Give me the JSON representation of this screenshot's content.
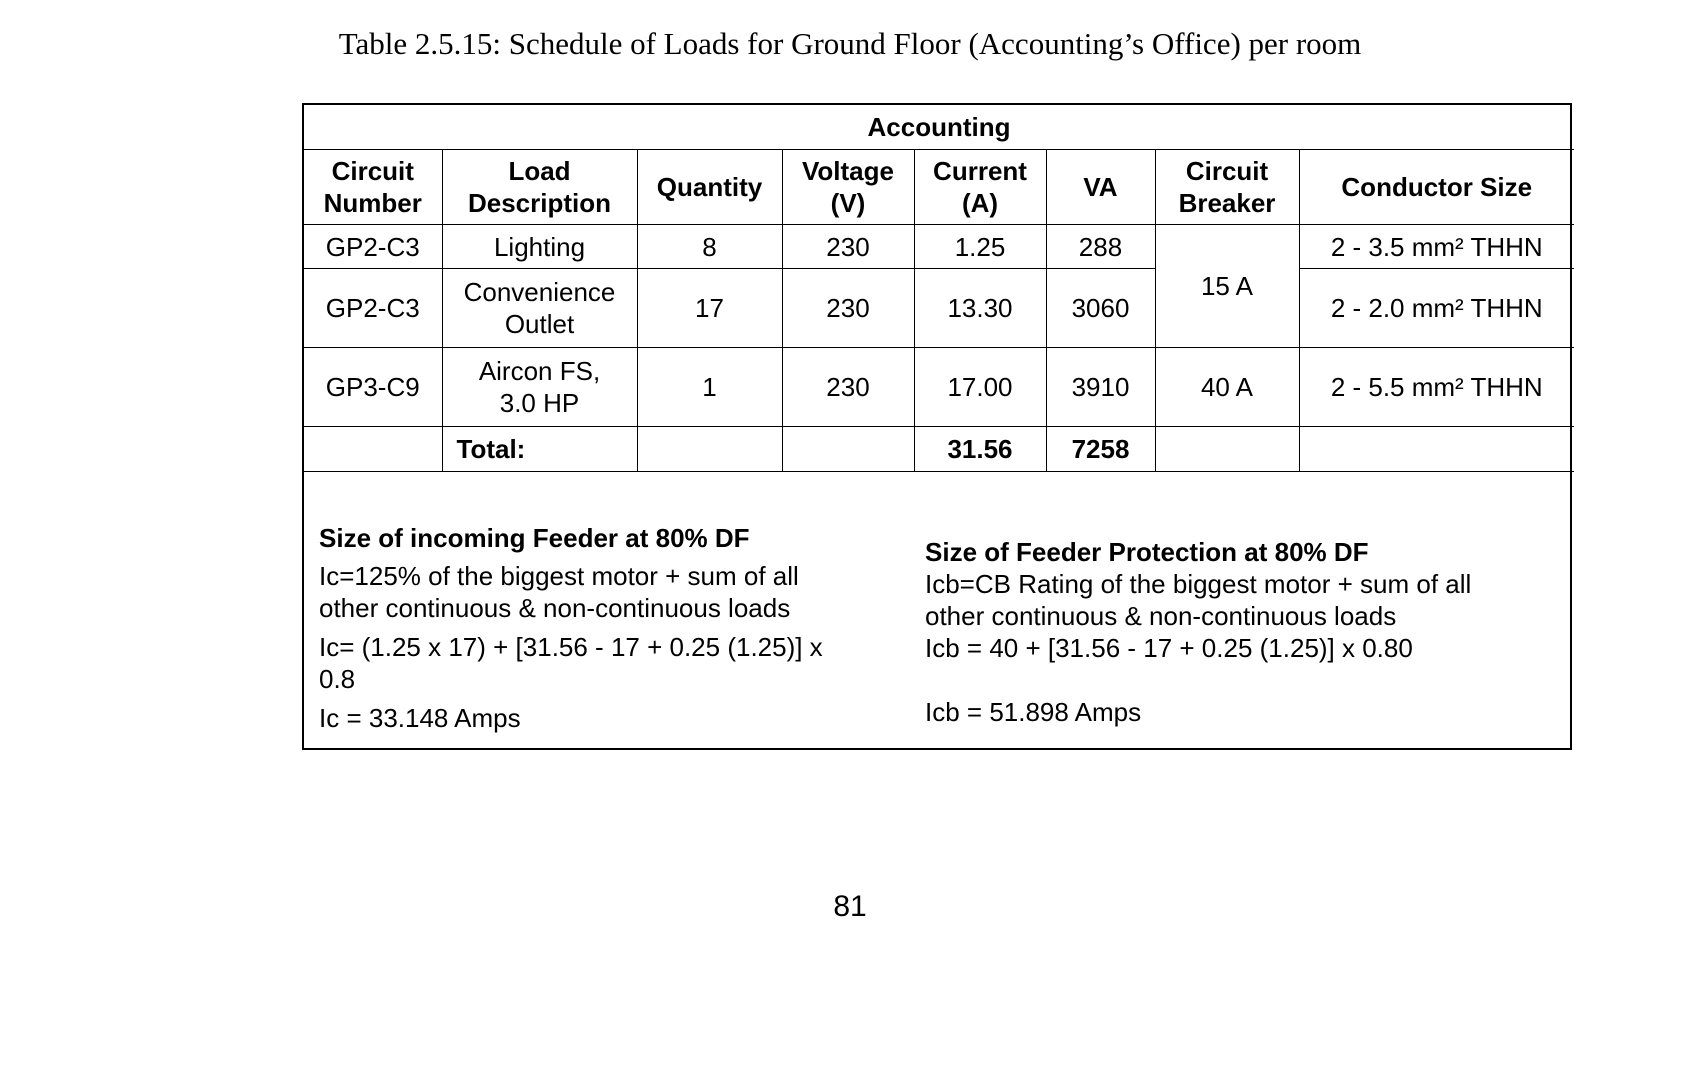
{
  "caption": "Table 2.5.15: Schedule of Loads for Ground Floor (Accounting’s Office) per room",
  "table": {
    "room": "Accounting",
    "headers": {
      "circuit_number": [
        "Circuit",
        "Number"
      ],
      "load_description": [
        "Load",
        "Description"
      ],
      "quantity": "Quantity",
      "voltage": [
        "Voltage",
        "(V)"
      ],
      "current": [
        "Current",
        "(A)"
      ],
      "va": "VA",
      "circuit_breaker": [
        "Circuit",
        "Breaker"
      ],
      "conductor_size": "Conductor Size"
    },
    "rows": [
      {
        "circuit": "GP2-C3",
        "load": [
          "Lighting"
        ],
        "quantity": "8",
        "voltage": "230",
        "current": "1.25",
        "va": "288",
        "conductor": "2 - 3.5 mm² THHN"
      },
      {
        "circuit": "GP2-C3",
        "load": [
          "Convenience",
          "Outlet"
        ],
        "quantity": "17",
        "voltage": "230",
        "current": "13.30",
        "va": "3060",
        "conductor": "2 - 2.0 mm² THHN"
      },
      {
        "circuit": "GP3-C9",
        "load": [
          "Aircon FS,",
          "3.0 HP"
        ],
        "quantity": "1",
        "voltage": "230",
        "current": "17.00",
        "va": "3910",
        "breaker": "40 A",
        "conductor": "2 - 5.5 mm² THHN"
      }
    ],
    "shared_breaker": "15 A",
    "total": {
      "label": "Total:",
      "current": "31.56",
      "va": "7258"
    }
  },
  "feeder": {
    "title": "Size of incoming Feeder at 80% DF",
    "formula_line1": "Ic=125% of the biggest motor + sum of all",
    "formula_line2": "other continuous & non-continuous  loads",
    "calc_line1": "Ic= (1.25 x 17) + [31.56 - 17 + 0.25 (1.25)] x",
    "calc_line2": "0.8",
    "result": "Ic = 33.148 Amps"
  },
  "protection": {
    "title": "Size of Feeder Protection at 80% DF",
    "formula_line1": "Icb=CB Rating of the biggest motor + sum of all",
    "formula_line2": "other continuous & non-continuous loads",
    "calc": "Icb =  40 + [31.56 - 17 + 0.25 (1.25)] x 0.80",
    "result": "Icb = 51.898 Amps"
  },
  "page_number": "81"
}
